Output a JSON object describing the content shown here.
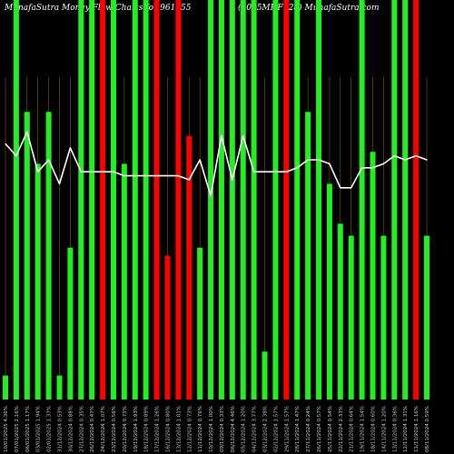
{
  "header": {
    "left": "MunafaSutra  Money Flow  Charts for 961955",
    "right": "(1065MHFL28)  MunafaSutra.com"
  },
  "colors": {
    "up": "#22ee22",
    "down": "#ff0000",
    "line": "#ffffff",
    "grid": "#8a5a00",
    "background": "#000000"
  },
  "chart_data": {
    "type": "bar",
    "grid": true,
    "ylim": [
      0,
      100
    ],
    "categories": [
      "10/01/2025 4.36%",
      "07/01/2025 2.16%",
      "06/01/2025 1.17%",
      "03/01/2025 1.94%",
      "02/01/2025 1.37%",
      "31/12/2024 0.53%",
      "30/12/2024 0.88%",
      "27/12/2024 0.35%",
      "26/12/2024 0.47%",
      "24/12/2024 1.07%",
      "23/12/2024 0.56%",
      "20/12/2024 0.73%",
      "19/12/2024 1.93%",
      "18/12/2024 0.89%",
      "17/12/2024 1.26%",
      "16/12/2024 0.80%",
      "13/12/2024 1.01%",
      "12/12/2024 0.73%",
      "11/12/2024 0.76%",
      "10/12/2024 1.00%",
      "09/12/2024 0.33%",
      "06/12/2024 4.46%",
      "05/12/2024 1.20%",
      "04/12/2024 3.77%",
      "03/12/2024 2.38%",
      "02/12/2024 1.57%",
      "29/11/2024 1.57%",
      "28/11/2024 1.47%",
      "27/11/2024 0.24%",
      "26/11/2024 0.57%",
      "25/11/2024 0.54%",
      "22/11/2024 2.33%",
      "21/11/2024 0.64%",
      "19/11/2024 1.54%",
      "18/11/2024 0.60%",
      "14/11/2024 1.20%",
      "13/11/2024 0.36%",
      "12/11/2024 1.31%",
      "11/11/2024 1.16%",
      "08/11/2024 0.59%"
    ],
    "series": [
      {
        "kind": "bar",
        "values": [
          6,
          100,
          72,
          59,
          72,
          6,
          38,
          100,
          100,
          100,
          100,
          59,
          100,
          100,
          100,
          36,
          100,
          66,
          38,
          100,
          100,
          100,
          100,
          100,
          12,
          100,
          100,
          100,
          72,
          100,
          54,
          44,
          41,
          100,
          62,
          41,
          100,
          100,
          100,
          41
        ],
        "colors": [
          "up",
          "up",
          "up",
          "up",
          "up",
          "up",
          "up",
          "up",
          "up",
          "down",
          "up",
          "up",
          "up",
          "up",
          "down",
          "down",
          "down",
          "down",
          "up",
          "up",
          "up",
          "up",
          "up",
          "up",
          "up",
          "up",
          "down",
          "up",
          "up",
          "up",
          "up",
          "up",
          "up",
          "up",
          "up",
          "up",
          "up",
          "up",
          "down",
          "up"
        ]
      },
      {
        "kind": "line",
        "values": [
          64,
          61,
          67,
          57,
          60,
          54,
          63,
          57,
          57,
          57,
          57,
          56,
          56,
          56,
          56,
          56,
          56,
          55,
          60,
          51,
          66,
          55,
          66,
          57,
          57,
          57,
          57,
          58,
          60,
          60,
          59,
          53,
          53,
          58,
          58,
          59,
          61,
          60,
          61,
          60
        ]
      }
    ]
  }
}
